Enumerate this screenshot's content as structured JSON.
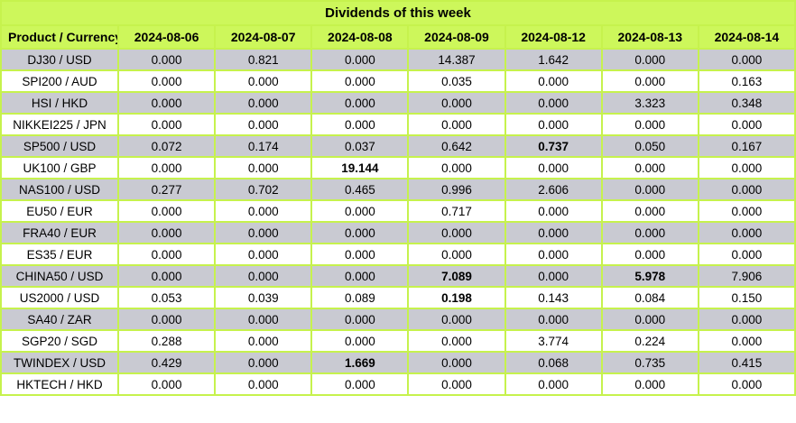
{
  "chart_data": {
    "type": "table",
    "title": "Dividends of this week",
    "columns": [
      "Product / Currency",
      "2024-08-06",
      "2024-08-07",
      "2024-08-08",
      "2024-08-09",
      "2024-08-12",
      "2024-08-13",
      "2024-08-14"
    ],
    "rows": [
      {
        "product": "DJ30 / USD",
        "values": [
          "0.000",
          "0.821",
          "0.000",
          "14.387",
          "1.642",
          "0.000",
          "0.000"
        ],
        "bold": []
      },
      {
        "product": "SPI200 / AUD",
        "values": [
          "0.000",
          "0.000",
          "0.000",
          "0.035",
          "0.000",
          "0.000",
          "0.163"
        ],
        "bold": []
      },
      {
        "product": "HSI / HKD",
        "values": [
          "0.000",
          "0.000",
          "0.000",
          "0.000",
          "0.000",
          "3.323",
          "0.348"
        ],
        "bold": []
      },
      {
        "product": "NIKKEI225 / JPN",
        "values": [
          "0.000",
          "0.000",
          "0.000",
          "0.000",
          "0.000",
          "0.000",
          "0.000"
        ],
        "bold": []
      },
      {
        "product": "SP500 / USD",
        "values": [
          "0.072",
          "0.174",
          "0.037",
          "0.642",
          "0.737",
          "0.050",
          "0.167"
        ],
        "bold": [
          4
        ]
      },
      {
        "product": "UK100 / GBP",
        "values": [
          "0.000",
          "0.000",
          "19.144",
          "0.000",
          "0.000",
          "0.000",
          "0.000"
        ],
        "bold": [
          2
        ]
      },
      {
        "product": "NAS100 / USD",
        "values": [
          "0.277",
          "0.702",
          "0.465",
          "0.996",
          "2.606",
          "0.000",
          "0.000"
        ],
        "bold": []
      },
      {
        "product": "EU50 / EUR",
        "values": [
          "0.000",
          "0.000",
          "0.000",
          "0.717",
          "0.000",
          "0.000",
          "0.000"
        ],
        "bold": []
      },
      {
        "product": "FRA40 / EUR",
        "values": [
          "0.000",
          "0.000",
          "0.000",
          "0.000",
          "0.000",
          "0.000",
          "0.000"
        ],
        "bold": []
      },
      {
        "product": "ES35 / EUR",
        "values": [
          "0.000",
          "0.000",
          "0.000",
          "0.000",
          "0.000",
          "0.000",
          "0.000"
        ],
        "bold": []
      },
      {
        "product": "CHINA50 / USD",
        "values": [
          "0.000",
          "0.000",
          "0.000",
          "7.089",
          "0.000",
          "5.978",
          "7.906"
        ],
        "bold": [
          3,
          5
        ]
      },
      {
        "product": "US2000 / USD",
        "values": [
          "0.053",
          "0.039",
          "0.089",
          "0.198",
          "0.143",
          "0.084",
          "0.150"
        ],
        "bold": [
          3
        ]
      },
      {
        "product": "SA40 / ZAR",
        "values": [
          "0.000",
          "0.000",
          "0.000",
          "0.000",
          "0.000",
          "0.000",
          "0.000"
        ],
        "bold": []
      },
      {
        "product": "SGP20 / SGD",
        "values": [
          "0.288",
          "0.000",
          "0.000",
          "0.000",
          "3.774",
          "0.224",
          "0.000"
        ],
        "bold": []
      },
      {
        "product": "TWINDEX / USD",
        "values": [
          "0.429",
          "0.000",
          "1.669",
          "0.000",
          "0.068",
          "0.735",
          "0.415"
        ],
        "bold": [
          2
        ]
      },
      {
        "product": "HKTECH / HKD",
        "values": [
          "0.000",
          "0.000",
          "0.000",
          "0.000",
          "0.000",
          "0.000",
          "0.000"
        ],
        "bold": []
      }
    ],
    "layout": {
      "grid": true,
      "alternating_rows": [
        "gray",
        "white"
      ],
      "first_row_style": "gray"
    }
  },
  "colors": {
    "accent_green": "#cdf75b",
    "grid_border": "#c6f24d",
    "row_gray": "#c9cad2",
    "row_white": "#ffffff",
    "text": "#000000"
  }
}
